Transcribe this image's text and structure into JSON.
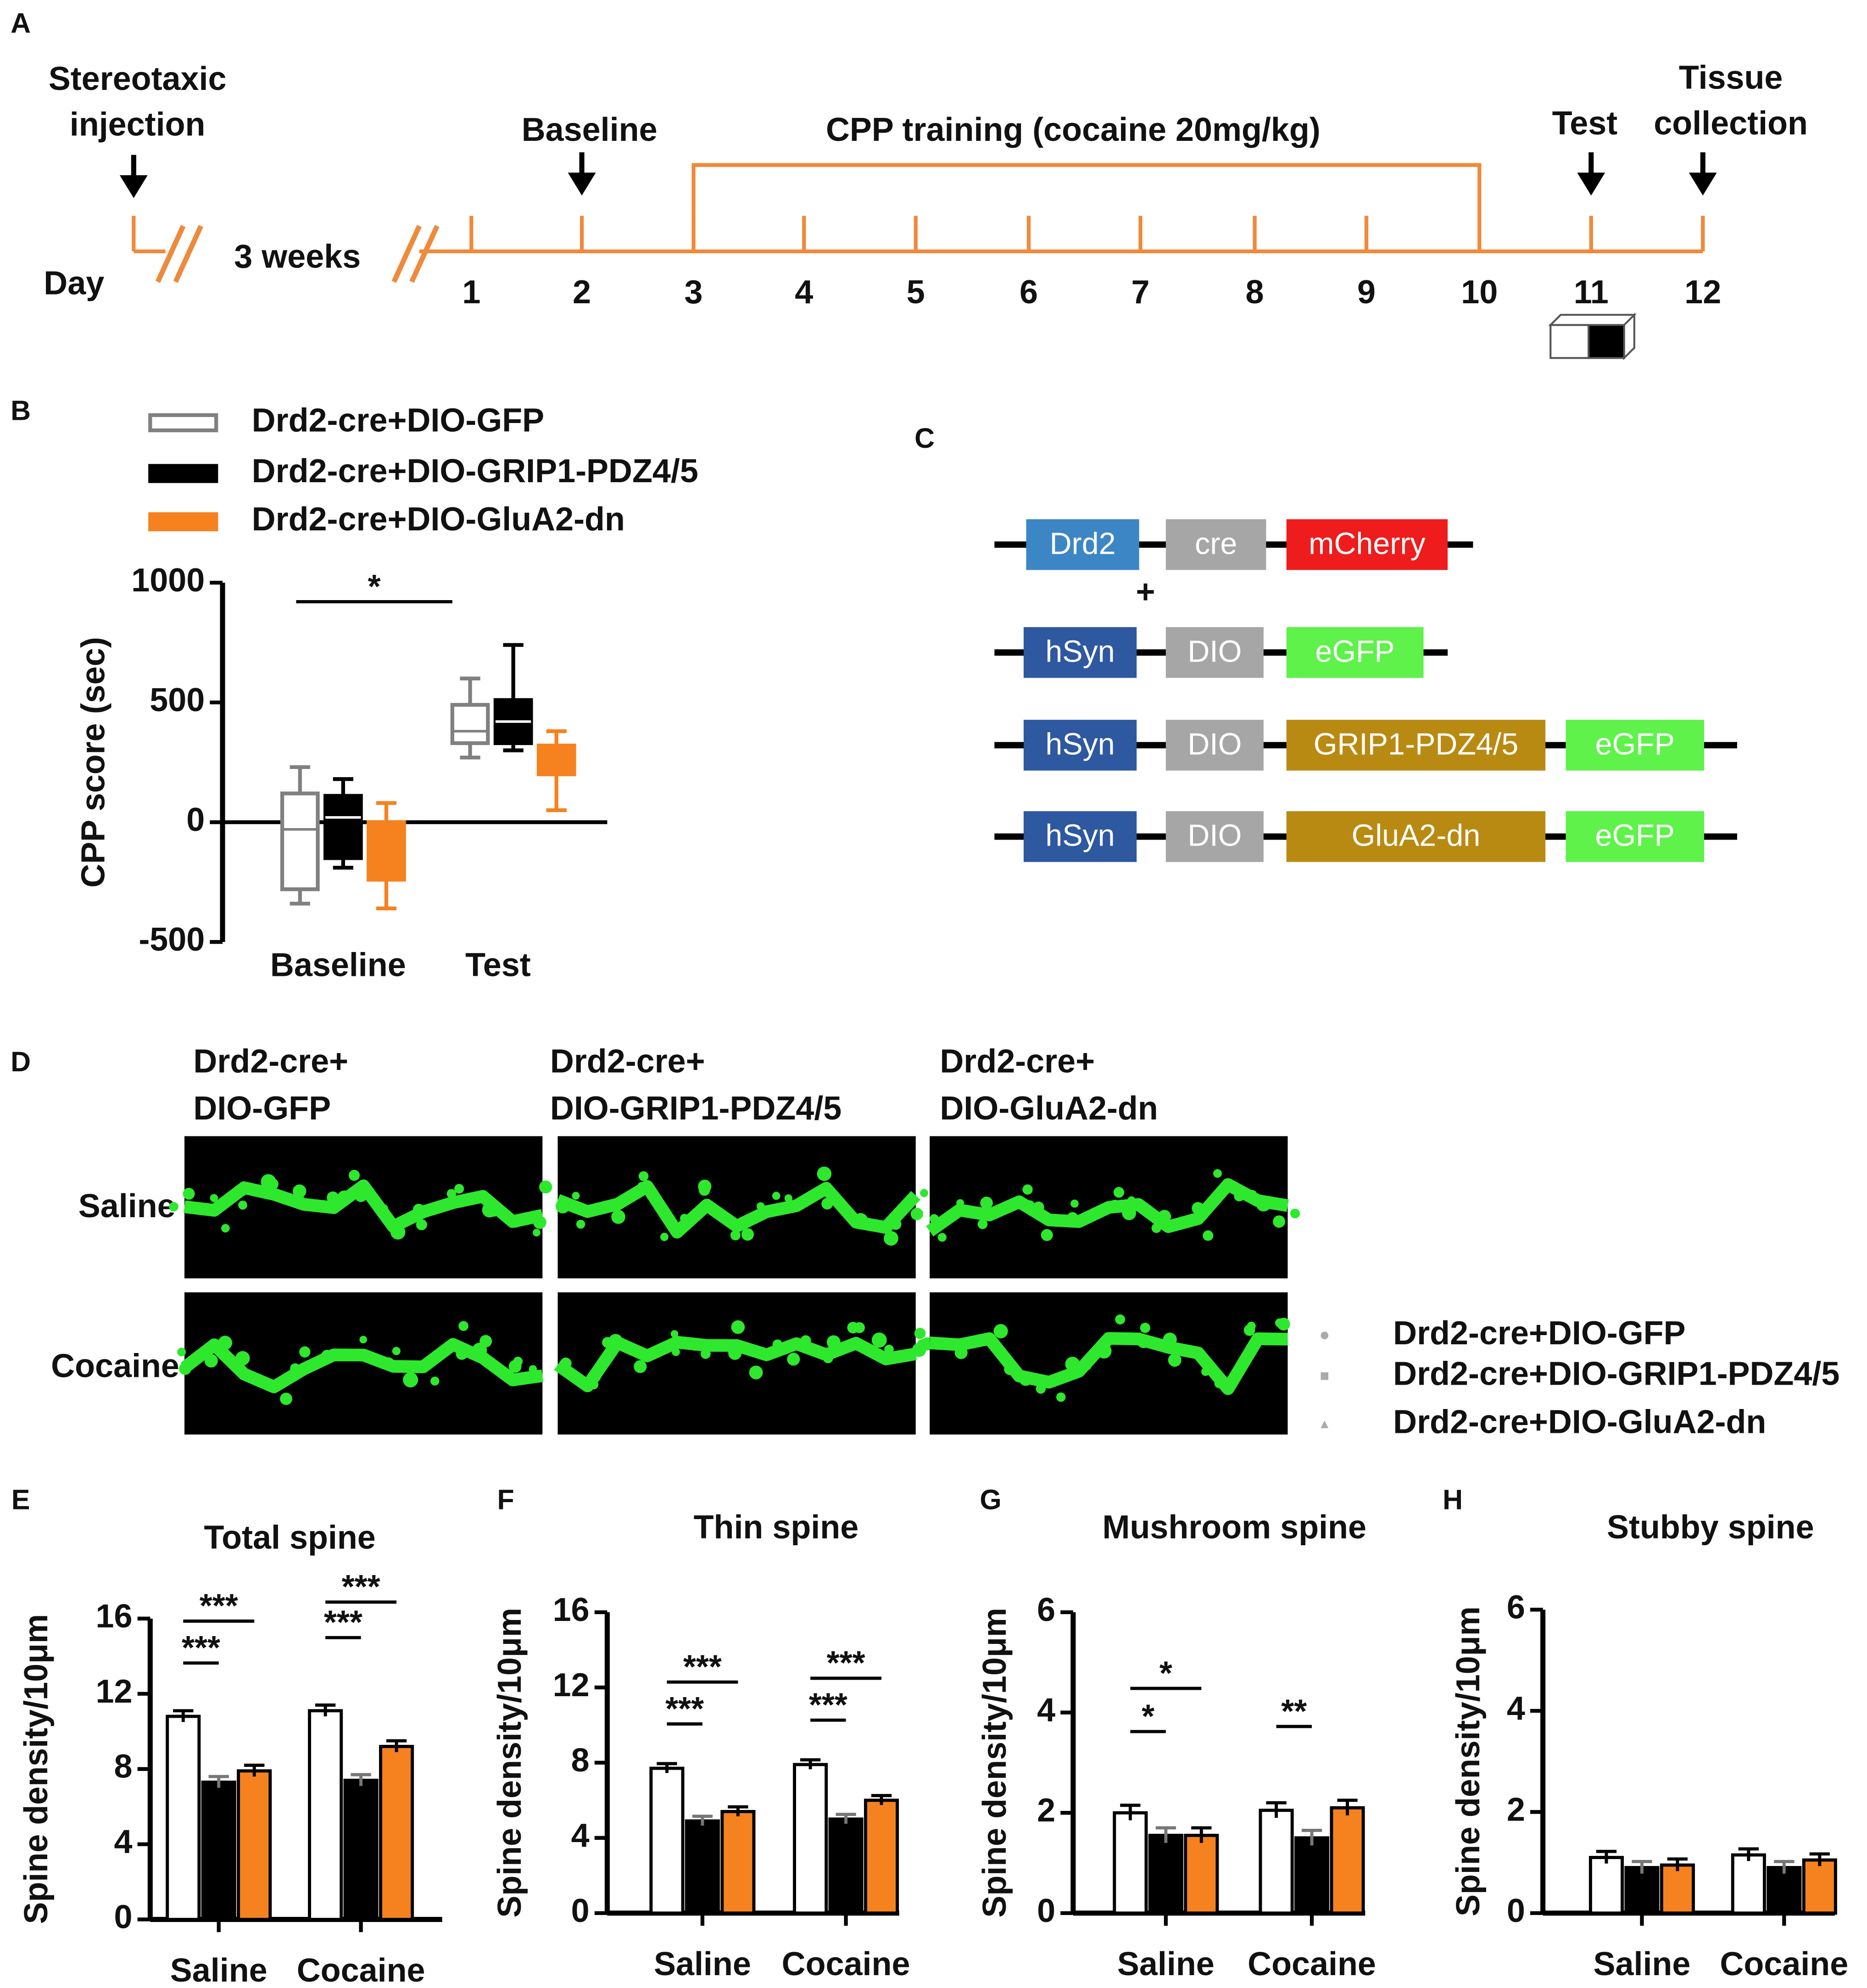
{
  "panel_labels": [
    "A",
    "B",
    "C",
    "D",
    "E",
    "F",
    "G",
    "H"
  ],
  "timeline": {
    "day_label": "Day",
    "interval": "3 weeks",
    "days": [
      "1",
      "2",
      "3",
      "4",
      "5",
      "6",
      "7",
      "8",
      "9",
      "10",
      "11",
      "12"
    ],
    "injection": [
      "Stereotaxic",
      "injection"
    ],
    "baseline": "Baseline",
    "training": "CPP training (cocaine 20mg/kg)",
    "test": "Test",
    "collection": [
      "Tissue",
      "collection"
    ]
  },
  "constructs": {
    "plus": "+",
    "rows": [
      [
        "Drd2",
        "cre",
        "mCherry"
      ],
      [
        "hSyn",
        "DIO",
        "eGFP"
      ],
      [
        "hSyn",
        "DIO",
        "GRIP1-PDZ4/5",
        "eGFP"
      ],
      [
        "hSyn",
        "DIO",
        "GluA2-dn",
        "eGFP"
      ]
    ]
  },
  "micrographs": {
    "columns": [
      [
        "Drd2-cre+",
        "DIO-GFP"
      ],
      [
        "Drd2-cre+",
        "DIO-GRIP1-PDZ4/5"
      ],
      [
        "Drd2-cre+",
        "DIO-GluA2-dn"
      ]
    ],
    "rows": [
      "Saline",
      "Cocaine"
    ]
  },
  "point_legend": [
    "Drd2-cre+DIO-GFP",
    "Drd2-cre+DIO-GRIP1-PDZ4/5",
    "Drd2-cre+DIO-GluA2-dn"
  ],
  "chart_data": [
    {
      "type": "box",
      "ylabel": "CPP score (sec)",
      "categories": [
        "Baseline",
        "Test"
      ],
      "ylim": [
        -500,
        1000
      ],
      "yticks": [
        -500,
        0,
        500,
        1000
      ],
      "annotations": [
        "*"
      ],
      "series": [
        {
          "name": "Drd2-cre+DIO-GFP",
          "color": "#808080",
          "values": [
            [
              -340,
              -280,
              -30,
              120,
              230
            ],
            [
              270,
              330,
              380,
              490,
              600
            ]
          ]
        },
        {
          "name": "Drd2-cre+DIO-GRIP1-PDZ4/5",
          "color": "#000000",
          "values": [
            [
              -190,
              -150,
              20,
              110,
              180
            ],
            [
              300,
              330,
              420,
              510,
              740
            ]
          ]
        },
        {
          "name": "Drd2-cre+DIO-GluA2-dn",
          "color": "#f5821f",
          "values": [
            [
              -360,
              -240,
              -70,
              0,
              80
            ],
            [
              50,
              200,
              250,
              320,
              380
            ]
          ]
        }
      ]
    },
    {
      "type": "bar",
      "title": "Total spine",
      "ylabel": "Spine density/10μm",
      "categories": [
        "Saline",
        "Cocaine"
      ],
      "ylim": [
        0,
        16
      ],
      "yticks": [
        0,
        4,
        8,
        12,
        16
      ],
      "annotations": [
        "***",
        "***",
        "***",
        "***"
      ],
      "series": [
        {
          "name": "Drd2-cre+DIO-GFP",
          "color": "#ffffff",
          "values": [
            10.8,
            11.1
          ],
          "errors": [
            0.3,
            0.3
          ]
        },
        {
          "name": "Drd2-cre+DIO-GRIP1-PDZ4/5",
          "color": "#000000",
          "values": [
            7.3,
            7.4
          ],
          "errors": [
            0.3,
            0.3
          ]
        },
        {
          "name": "Drd2-cre+DIO-GluA2-dn",
          "color": "#f5821f",
          "values": [
            7.9,
            9.2
          ],
          "errors": [
            0.3,
            0.3
          ]
        }
      ]
    },
    {
      "type": "bar",
      "title": "Thin spine",
      "ylabel": "Spine density/10μm",
      "categories": [
        "Saline",
        "Cocaine"
      ],
      "ylim": [
        0,
        16
      ],
      "yticks": [
        0,
        4,
        8,
        12,
        16
      ],
      "annotations": [
        "***",
        "***",
        "***",
        "***"
      ],
      "series": [
        {
          "name": "Drd2-cre+DIO-GFP",
          "color": "#ffffff",
          "values": [
            7.7,
            7.9
          ],
          "errors": [
            0.25,
            0.25
          ]
        },
        {
          "name": "Drd2-cre+DIO-GRIP1-PDZ4/5",
          "color": "#000000",
          "values": [
            4.9,
            5.0
          ],
          "errors": [
            0.25,
            0.25
          ]
        },
        {
          "name": "Drd2-cre+DIO-GluA2-dn",
          "color": "#f5821f",
          "values": [
            5.4,
            6.0
          ],
          "errors": [
            0.25,
            0.25
          ]
        }
      ]
    },
    {
      "type": "bar",
      "title": "Mushroom spine",
      "ylabel": "Spine density/10μm",
      "categories": [
        "Saline",
        "Cocaine"
      ],
      "ylim": [
        0,
        6
      ],
      "yticks": [
        0,
        2,
        4,
        6
      ],
      "annotations": [
        "*",
        "*",
        "**"
      ],
      "series": [
        {
          "name": "Drd2-cre+DIO-GFP",
          "color": "#ffffff",
          "values": [
            2.0,
            2.05
          ],
          "errors": [
            0.15,
            0.15
          ]
        },
        {
          "name": "Drd2-cre+DIO-GRIP1-PDZ4/5",
          "color": "#000000",
          "values": [
            1.55,
            1.5
          ],
          "errors": [
            0.15,
            0.15
          ]
        },
        {
          "name": "Drd2-cre+DIO-GluA2-dn",
          "color": "#f5821f",
          "values": [
            1.55,
            2.1
          ],
          "errors": [
            0.15,
            0.15
          ]
        }
      ]
    },
    {
      "type": "bar",
      "title": "Stubby spine",
      "ylabel": "Spine density/10μm",
      "categories": [
        "Saline",
        "Cocaine"
      ],
      "ylim": [
        0,
        6
      ],
      "yticks": [
        0,
        2,
        4,
        6
      ],
      "series": [
        {
          "name": "Drd2-cre+DIO-GFP",
          "color": "#ffffff",
          "values": [
            1.1,
            1.15
          ],
          "errors": [
            0.12,
            0.12
          ]
        },
        {
          "name": "Drd2-cre+DIO-GRIP1-PDZ4/5",
          "color": "#000000",
          "values": [
            0.9,
            0.9
          ],
          "errors": [
            0.12,
            0.12
          ]
        },
        {
          "name": "Drd2-cre+DIO-GluA2-dn",
          "color": "#f5821f",
          "values": [
            0.95,
            1.05
          ],
          "errors": [
            0.12,
            0.12
          ]
        }
      ]
    }
  ]
}
